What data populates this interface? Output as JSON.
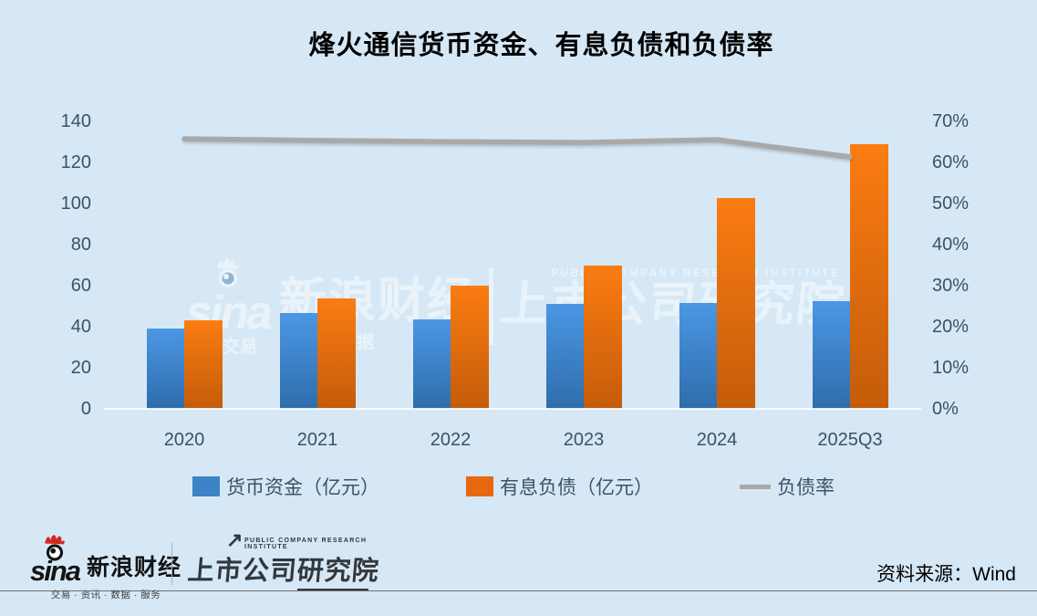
{
  "title": "烽火通信货币资金、有息负债和负债率",
  "colors": {
    "background": "#d6e8f6",
    "axis_text": "#3d5166",
    "bar_blue_top": "#4b97e4",
    "bar_blue_bottom": "#2e6dac",
    "bar_orange_top": "#fb7c12",
    "bar_orange_bottom": "#c45c0a",
    "line_gray": "#a9a9a9"
  },
  "chart_data": {
    "type": "bar+line combo",
    "categories": [
      "2020",
      "2021",
      "2022",
      "2023",
      "2024",
      "2025Q3"
    ],
    "series": [
      {
        "key": "cash",
        "name": "货币资金（亿元）",
        "type": "bar",
        "axis": "left",
        "color_top": "#4b97e4",
        "color_bottom": "#2e6dac",
        "legend_color": "#3d84c6",
        "values": [
          39.1,
          46.7,
          43.5,
          51.1,
          51.5,
          52.4
        ]
      },
      {
        "key": "debt",
        "name": "有息负债（亿元）",
        "type": "bar",
        "axis": "left",
        "color_top": "#fb7c12",
        "color_bottom": "#c45c0a",
        "legend_color": "#e8680e",
        "values": [
          43.1,
          53.7,
          59.9,
          69.7,
          102.6,
          128.8
        ]
      },
      {
        "key": "debt_ratio",
        "name": "负债率",
        "type": "line",
        "axis": "right",
        "unit": "%",
        "color": "#a9a9a9",
        "values": [
          65.7,
          65.3,
          65.0,
          64.8,
          65.5,
          61.3
        ]
      }
    ],
    "left_axis": {
      "min": 0,
      "max": 140,
      "step": 20,
      "tick_labels": [
        "140",
        "120",
        "100",
        "80",
        "60",
        "40",
        "20",
        "0"
      ]
    },
    "right_axis": {
      "min": 0,
      "max": 70,
      "step": 10,
      "tick_labels": [
        "70%",
        "60%",
        "50%",
        "40%",
        "30%",
        "20%",
        "10%",
        "0%"
      ]
    },
    "legend_position": "bottom",
    "grid": "off"
  },
  "watermark": {
    "sina_script": "sina",
    "tag_left": "交易",
    "brand": "新浪财经",
    "tag_right": "数据",
    "pcri_en": "PUBLIC COMPANY RESEARCH INSTITUTE",
    "pcri_cn": "上市公司研究院"
  },
  "footer": {
    "sina_script": "sina",
    "sina_brand": "新浪财经",
    "sina_tagline": "交易 · 资讯 · 数据 · 服务",
    "pcri_en": "PUBLIC COMPANY RESEARCH INSTITUTE",
    "pcri_cn": "上市公司研究院",
    "pcri_arrow": "↗",
    "source": "资料来源：Wind"
  }
}
